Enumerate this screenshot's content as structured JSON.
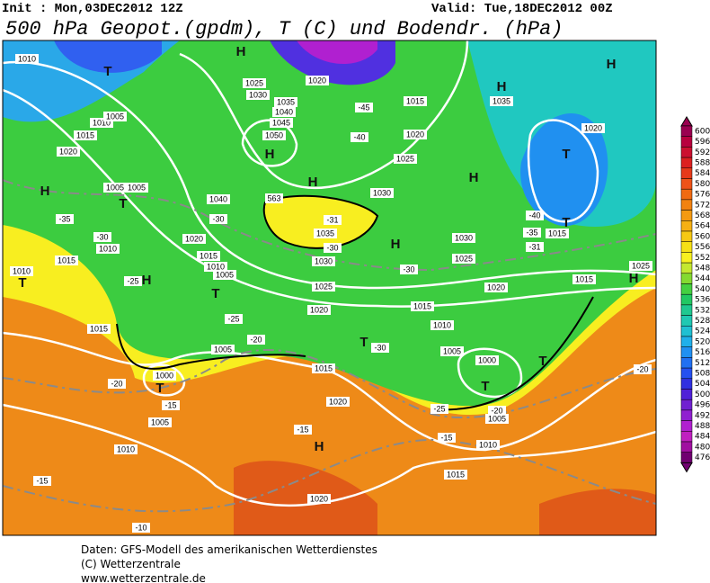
{
  "header": {
    "init": "Init : Mon,03DEC2012 12Z",
    "valid": "Valid: Tue,18DEC2012 00Z",
    "title": "500 hPa Geopot.(gpdm), T (C) und Bodendr. (hPa)"
  },
  "colorbar": {
    "labels": [
      "600",
      "596",
      "592",
      "588",
      "584",
      "580",
      "576",
      "572",
      "568",
      "564",
      "560",
      "556",
      "552",
      "548",
      "544",
      "540",
      "536",
      "532",
      "528",
      "524",
      "520",
      "516",
      "512",
      "508",
      "504",
      "500",
      "496",
      "492",
      "488",
      "484",
      "480",
      "476"
    ],
    "colors": [
      "#9a0050",
      "#b8003e",
      "#cc1030",
      "#dc2020",
      "#e63a1a",
      "#ee5218",
      "#f06a12",
      "#f28210",
      "#f49a12",
      "#f6b014",
      "#f6c814",
      "#f6e016",
      "#f8f020",
      "#c4e830",
      "#84da30",
      "#44d040",
      "#22c862",
      "#20c890",
      "#20c8b2",
      "#20c0d2",
      "#20b0ea",
      "#2090f2",
      "#2070f2",
      "#2450f0",
      "#3030e0",
      "#5020d8",
      "#7020d0",
      "#9020d0",
      "#b020d0",
      "#c020c0",
      "#a010a0",
      "#700070"
    ]
  },
  "map": {
    "labels": [
      "H",
      "T",
      "H",
      "H",
      "1035",
      "1025",
      "1030",
      "1035",
      "1040",
      "1045",
      "1050",
      "H",
      "H",
      "T",
      "1020",
      "1020",
      "1015",
      "-45",
      "-40",
      "1020",
      "1025",
      "1030",
      "H",
      "1040",
      "-30",
      "563",
      "-31",
      "1035",
      "-30",
      "1030",
      "H",
      "1030",
      "1025",
      "-40",
      "T",
      "1015",
      "-35",
      "-31",
      "1025",
      "H",
      "H",
      "T",
      "1005",
      "-35",
      "-30",
      "1010",
      "1015",
      "1010",
      "T",
      "H",
      "-25",
      "1020",
      "1015",
      "1010",
      "1005",
      "T",
      "-25",
      "1025",
      "1020",
      "1015",
      "1020",
      "1015",
      "-30",
      "1010",
      "T",
      "-30",
      "1005",
      "1000",
      "T",
      "T",
      "-20",
      "-20",
      "1005",
      "1000",
      "T",
      "-20",
      "-15",
      "1005",
      "1015",
      "1020",
      "H",
      "-15",
      "-25",
      "-20",
      "1005",
      "-15",
      "1010",
      "1015",
      "1020",
      "1010",
      "-15",
      "-10",
      "1015",
      "1010",
      "1005",
      "1010",
      "1015",
      "1020",
      "1005"
    ]
  },
  "footer": [
    "Daten: GFS-Modell des amerikanischen Wetterdienstes",
    "(C) Wetterzentrale",
    "www.wetterzentrale.de"
  ]
}
